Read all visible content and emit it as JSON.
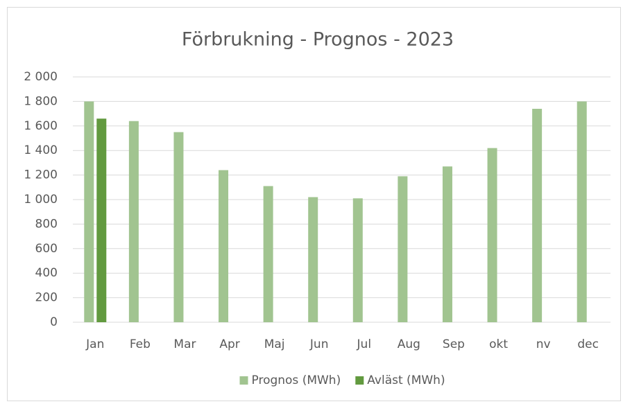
{
  "chart_data": {
    "type": "bar",
    "title": "Förbrukning - Prognos - 2023",
    "categories": [
      "Jan",
      "Feb",
      "Mar",
      "Apr",
      "Maj",
      "Jun",
      "Jul",
      "Aug",
      "Sep",
      "okt",
      "nv",
      "dec"
    ],
    "series": [
      {
        "name": "Prognos (MWh)",
        "color": "#a1c490",
        "values": [
          1800,
          1640,
          1550,
          1240,
          1110,
          1020,
          1010,
          1190,
          1270,
          1420,
          1740,
          1800
        ]
      },
      {
        "name": "Avläst (MWh)",
        "color": "#629a3f",
        "values": [
          1660,
          null,
          null,
          null,
          null,
          null,
          null,
          null,
          null,
          null,
          null,
          null
        ]
      }
    ],
    "ylim": [
      0,
      2000
    ],
    "yticks": [
      0,
      {
        "value": 200,
        "label": "200"
      },
      {
        "value": 400,
        "label": "400"
      },
      {
        "value": 600,
        "label": "600"
      },
      {
        "value": 800,
        "label": "800"
      },
      {
        "value": 1000,
        "label": "1 000"
      },
      {
        "value": 1200,
        "label": "1 200"
      },
      {
        "value": 1400,
        "label": "1 400"
      },
      {
        "value": 1600,
        "label": "1 600"
      },
      {
        "value": 1800,
        "label": "1 800"
      },
      {
        "value": 2000,
        "label": "2 000"
      }
    ],
    "grid": true,
    "legend": "bottom"
  }
}
